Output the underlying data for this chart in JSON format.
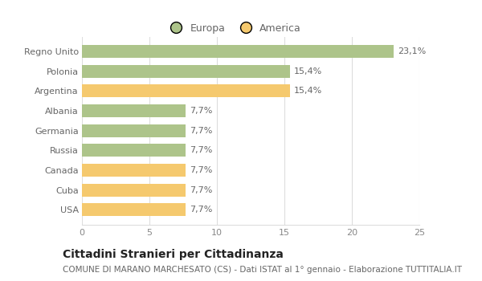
{
  "categories": [
    "USA",
    "Cuba",
    "Canada",
    "Russia",
    "Germania",
    "Albania",
    "Argentina",
    "Polonia",
    "Regno Unito"
  ],
  "values": [
    7.7,
    7.7,
    7.7,
    7.7,
    7.7,
    7.7,
    15.4,
    15.4,
    23.1
  ],
  "labels": [
    "7,7%",
    "7,7%",
    "7,7%",
    "7,7%",
    "7,7%",
    "7,7%",
    "15,4%",
    "15,4%",
    "23,1%"
  ],
  "colors": [
    "#f5c96e",
    "#f5c96e",
    "#f5c96e",
    "#adc48a",
    "#adc48a",
    "#adc48a",
    "#f5c96e",
    "#adc48a",
    "#adc48a"
  ],
  "legend_labels": [
    "Europa",
    "America"
  ],
  "legend_colors": [
    "#adc48a",
    "#f5c96e"
  ],
  "xlim": [
    0,
    25
  ],
  "xticks": [
    0,
    5,
    10,
    15,
    20,
    25
  ],
  "title": "Cittadini Stranieri per Cittadinanza",
  "subtitle": "COMUNE DI MARANO MARCHESATO (CS) - Dati ISTAT al 1° gennaio - Elaborazione TUTTITALIA.IT",
  "bg_color": "#ffffff",
  "grid_color": "#dddddd",
  "bar_height": 0.65,
  "title_fontsize": 10,
  "subtitle_fontsize": 7.5,
  "label_fontsize": 8,
  "tick_fontsize": 8,
  "legend_fontsize": 9,
  "label_color": "#666666",
  "tick_color": "#888888"
}
